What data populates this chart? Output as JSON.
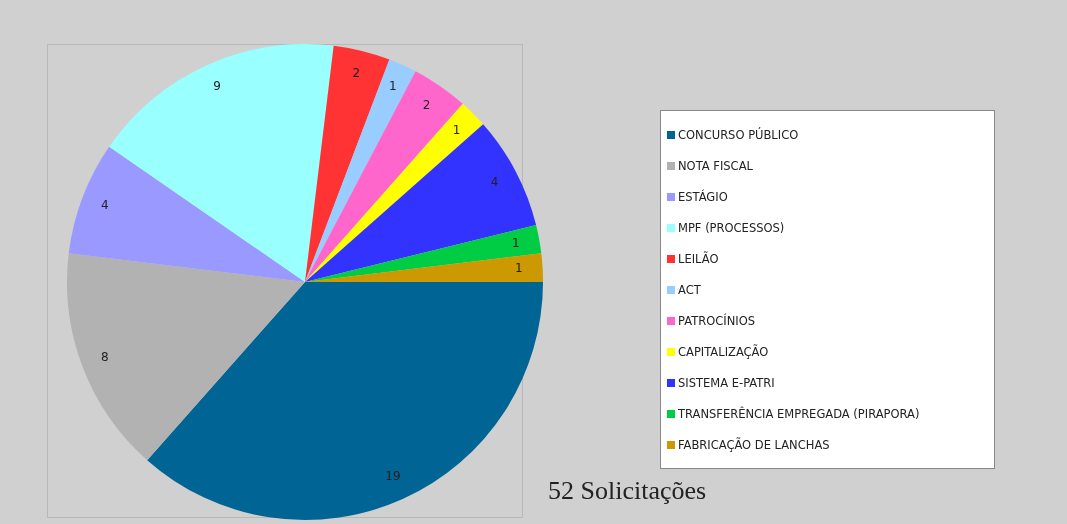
{
  "chart_data": {
    "type": "pie",
    "categories": [
      "CONCURSO  PÚBLICO",
      "NOTA FISCAL",
      "ESTÁGIO",
      "MPF (PROCESSOS)",
      "LEILÃO",
      "ACT",
      "PATROCÍNIOS",
      "CAPITALIZAÇÃO",
      "SISTEMA E-PATRI",
      "TRANSFERÊNCIA EMPREGADA (PIRAPORA)",
      "FABRICAÇÃO DE LANCHAS"
    ],
    "values": [
      19,
      8,
      4,
      9,
      2,
      1,
      2,
      1,
      4,
      1,
      1
    ],
    "colors": [
      "#006494",
      "#b2b2b2",
      "#9999ff",
      "#99ffff",
      "#ff3333",
      "#99ccff",
      "#ff66cc",
      "#ffff00",
      "#3333ff",
      "#00cc44",
      "#cc9900"
    ],
    "data_labels": true,
    "legend": "right",
    "annotations": [
      "52 Solicitações"
    ]
  }
}
